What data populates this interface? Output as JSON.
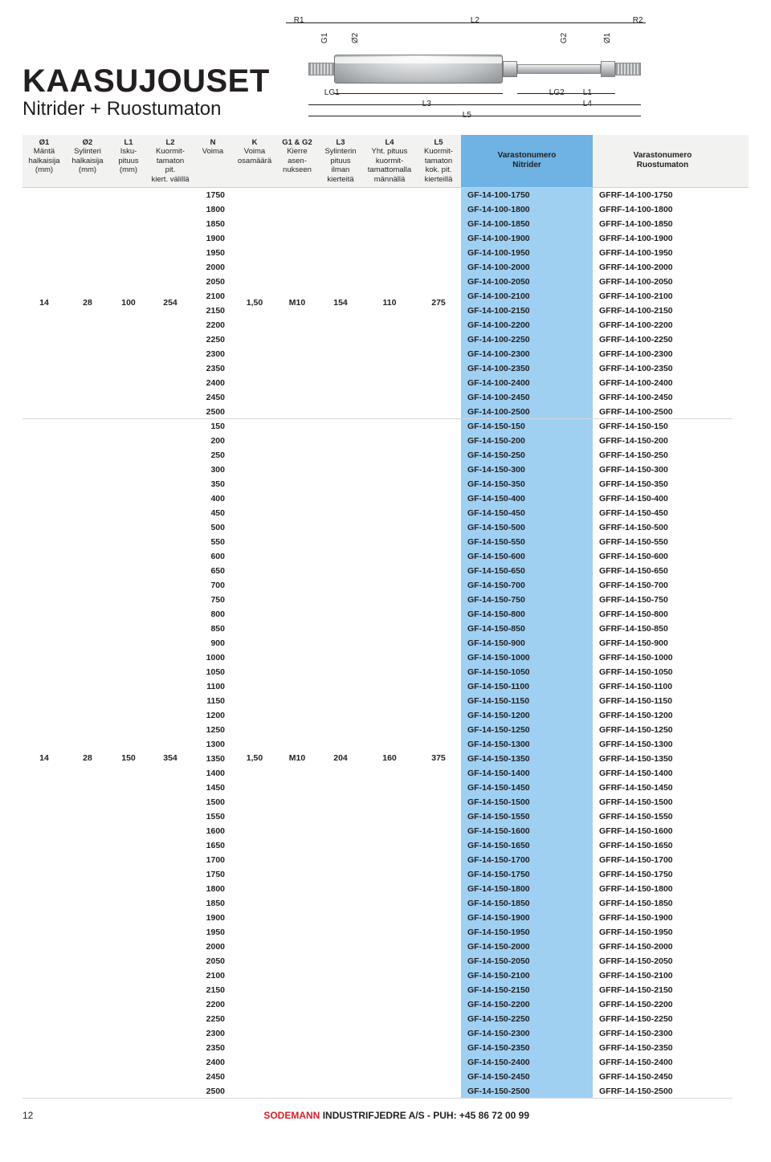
{
  "title_main": "KAASUJOUSET",
  "title_sub": "Nitrider + Ruostumaton",
  "diagram_labels": {
    "R1": "R1",
    "L2top": "L2",
    "R2": "R2",
    "G1": "G1",
    "O2": "Ø2",
    "G2": "G2",
    "O1": "Ø1",
    "LG1": "LG1",
    "LG2": "LG2",
    "L3": "L3",
    "L5": "L5",
    "L1": "L1",
    "L4": "L4"
  },
  "headers": [
    {
      "b": "Ø1",
      "r": [
        "Mäntä",
        "halkaisija",
        "(mm)"
      ]
    },
    {
      "b": "Ø2",
      "r": [
        "Sylinteri",
        "halkaisija",
        "(mm)"
      ]
    },
    {
      "b": "L1",
      "r": [
        "Isku-",
        "pituus",
        "(mm)"
      ]
    },
    {
      "b": "L2",
      "r": [
        "Kuormit-",
        "tamaton",
        "pit.",
        "kiert. välillä"
      ]
    },
    {
      "b": "N",
      "r": [
        "Voima"
      ]
    },
    {
      "b": "K",
      "r": [
        "Voima",
        "osamäärä"
      ]
    },
    {
      "b": "G1 & G2",
      "r": [
        "Kierre",
        "asen-",
        "nukseen"
      ]
    },
    {
      "b": "L3",
      "r": [
        "Sylinterin",
        "pituus",
        "ilman",
        "kierteitä"
      ]
    },
    {
      "b": "L4",
      "r": [
        "Yht. pituus",
        "kuormit-",
        "tamattomalla",
        "männällä"
      ]
    },
    {
      "b": "L5",
      "r": [
        "Kuormit-",
        "tamaton",
        "kok. pit.",
        "kierteillä"
      ]
    }
  ],
  "header_nitrider": "Varastonumero\nNitrider",
  "header_ruost": "Varastonumero\nRuostumaton",
  "groups": [
    {
      "fixed": {
        "o1": "14",
        "o2": "28",
        "l1": "100",
        "l2": "254",
        "k": "1,50",
        "g": "M10",
        "l3": "154",
        "l4": "110",
        "l5": "275"
      },
      "n_start": 1750,
      "n_end": 2500,
      "step": 50,
      "nit_prefix": "GF-14-100-",
      "ruo_prefix": "GFRF-14-100-"
    },
    {
      "fixed": {
        "o1": "14",
        "o2": "28",
        "l1": "150",
        "l2": "354",
        "k": "1,50",
        "g": "M10",
        "l3": "204",
        "l4": "160",
        "l5": "375"
      },
      "n_seq": [
        150,
        200,
        250,
        300,
        350,
        400,
        450,
        500,
        550,
        600,
        650,
        700,
        750,
        800,
        850,
        900,
        1000,
        1050,
        1100,
        1150,
        1200,
        1250,
        1300,
        1350,
        1400,
        1450,
        1500,
        1550,
        1600,
        1650,
        1700,
        1750,
        1800,
        1850,
        1900,
        1950,
        2000,
        2050,
        2100,
        2150,
        2200,
        2250,
        2300,
        2350,
        2400,
        2450,
        2500
      ],
      "nit_prefix": "GF-14-150-",
      "ruo_prefix": "GFRF-14-150-"
    }
  ],
  "footer_page": "12",
  "footer_company": "SODEMANN",
  "footer_rest": " INDUSTRIFJEDRE A/S - PUH: +45 86 72 00 99"
}
